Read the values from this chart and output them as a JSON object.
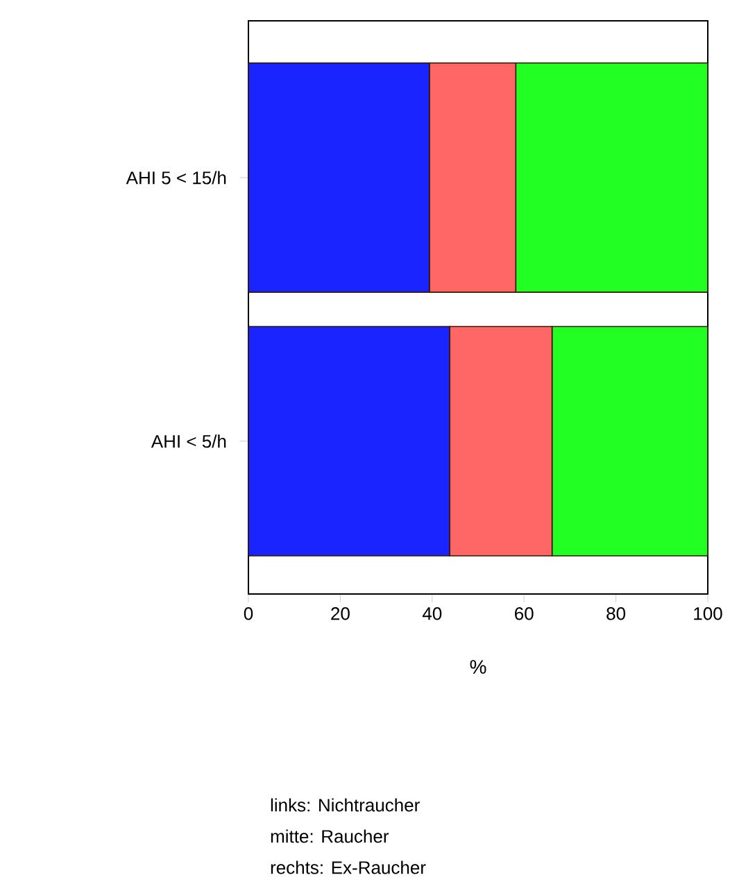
{
  "chart_data": {
    "type": "bar",
    "orientation": "horizontal",
    "stacked": true,
    "categories": [
      "AHI 5 < 15/h",
      "AHI < 5/h"
    ],
    "series": [
      {
        "color": "#1a24ff",
        "values": [
          39.4,
          43.8
        ]
      },
      {
        "color": "#ff6666",
        "values": [
          18.8,
          22.3
        ]
      },
      {
        "color": "#22ff22",
        "values": [
          41.8,
          33.9
        ]
      }
    ],
    "xlabel": "%",
    "xlim": [
      0,
      100
    ],
    "xticks": [
      0,
      20,
      40,
      60,
      80,
      100
    ],
    "annotations": [
      "links: Nichtraucher",
      "mitte: Raucher",
      "rechts: Ex-Raucher"
    ]
  }
}
